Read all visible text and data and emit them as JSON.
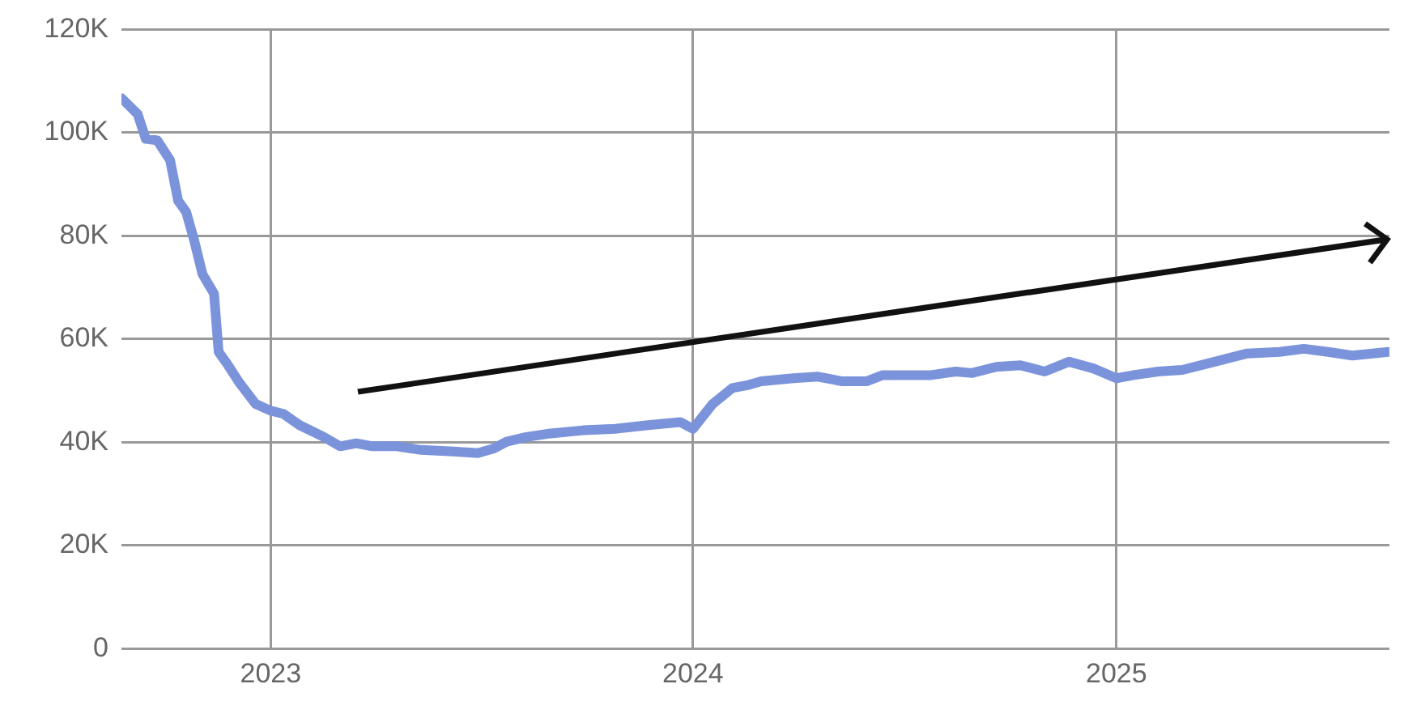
{
  "chart_data": {
    "type": "line",
    "x": [
      "2022-08-25",
      "2022-09-08",
      "2022-09-15",
      "2022-09-25",
      "2022-10-06",
      "2022-10-13",
      "2022-10-20",
      "2022-10-27",
      "2022-11-03",
      "2022-11-13",
      "2022-11-17",
      "2022-11-24",
      "2022-12-05",
      "2022-12-19",
      "2023-01-01",
      "2023-01-12",
      "2023-01-26",
      "2023-02-16",
      "2023-03-02",
      "2023-03-16",
      "2023-03-30",
      "2023-04-20",
      "2023-05-11",
      "2023-06-08",
      "2023-06-29",
      "2023-07-13",
      "2023-07-24",
      "2023-08-10",
      "2023-08-31",
      "2023-09-28",
      "2023-10-26",
      "2023-11-23",
      "2023-12-21",
      "2024-01-01",
      "2024-01-18",
      "2024-02-04",
      "2024-02-18",
      "2024-02-29",
      "2024-03-28",
      "2024-04-18",
      "2024-05-09",
      "2024-05-30",
      "2024-06-13",
      "2024-07-04",
      "2024-07-25",
      "2024-08-15",
      "2024-08-29",
      "2024-09-19",
      "2024-10-10",
      "2024-10-31",
      "2024-11-21",
      "2024-12-12",
      "2025-01-01",
      "2025-01-16",
      "2025-02-06",
      "2025-02-27",
      "2025-03-27",
      "2025-04-24",
      "2025-05-22",
      "2025-06-12",
      "2025-07-03",
      "2025-07-24",
      "2025-08-24"
    ],
    "series": [
      {
        "color": "#7b93db",
        "values": [
          106700,
          103600,
          98800,
          98500,
          94700,
          86800,
          84600,
          79000,
          72600,
          68800,
          57500,
          55300,
          51500,
          47400,
          46100,
          45500,
          43300,
          41000,
          39200,
          39800,
          39200,
          39200,
          38500,
          38200,
          37900,
          38800,
          40100,
          41000,
          41700,
          42300,
          42600,
          43300,
          43900,
          42600,
          47400,
          50500,
          51100,
          51800,
          52400,
          52700,
          51800,
          51800,
          53000,
          53000,
          53000,
          53700,
          53400,
          54600,
          54900,
          53700,
          55600,
          54300,
          52400,
          53000,
          53700,
          54000,
          55600,
          57200,
          57500,
          58100,
          57500,
          56800,
          57500
        ]
      }
    ],
    "xlim": [
      "2022-08-25",
      "2025-08-25"
    ],
    "xticks": [
      "2023",
      "2024",
      "2025"
    ],
    "ylim": [
      0,
      120000
    ],
    "yticks": [
      0,
      {
        "value": 20000,
        "label": "20K"
      },
      {
        "value": 40000,
        "label": "40K"
      },
      {
        "value": 60000,
        "label": "60K"
      },
      {
        "value": 80000,
        "label": "80K"
      },
      {
        "value": 100000,
        "label": "100K"
      },
      {
        "value": 120000,
        "label": "120K"
      }
    ],
    "grid": true,
    "marker": "none",
    "line_style": "solid"
  }
}
